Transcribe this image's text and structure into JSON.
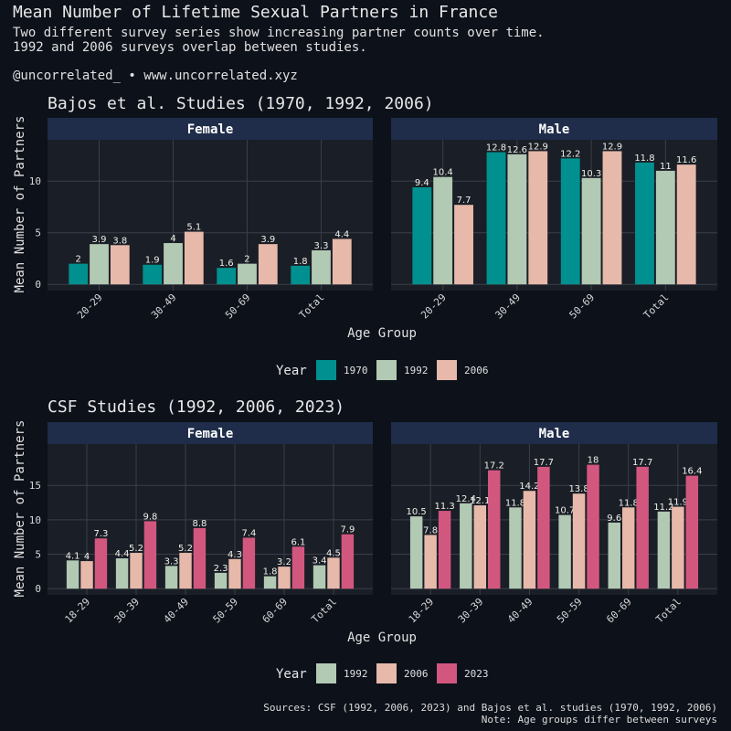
{
  "title": "Mean Number of Lifetime Sexual Partners in France",
  "subtitle_line1": "Two different survey series show increasing partner counts over time.",
  "subtitle_line2": "1992 and 2006 surveys overlap between studies.",
  "credit": "@uncorrelated_ • www.uncorrelated.xyz",
  "caption_line1": "Sources: CSF (1992, 2006, 2023) and Bajos et al. studies (1970, 1992, 2006)",
  "caption_line2": "Note: Age groups differ between surveys",
  "colors": {
    "1970": "#00908f",
    "1992": "#b2c9b4",
    "2006": "#e7b9aa",
    "2023": "#d2577f",
    "strip": "#1f2d4a",
    "panel": "#1a1e26",
    "grid": "#3a3f48"
  },
  "chart_data": [
    {
      "type": "bar",
      "title": "Bajos et al. Studies (1970, 1992, 2006)",
      "xlabel": "Age Group",
      "ylabel": "Mean Number of Partners",
      "ylim": [
        -0.6,
        14.0
      ],
      "yticks": [
        0,
        5,
        10
      ],
      "legend_title": "Year",
      "legend_position": "bottom",
      "series_names": [
        "1970",
        "1992",
        "2006"
      ],
      "panels": [
        {
          "facet": "Female",
          "categories": [
            "20-29",
            "30-49",
            "50-69",
            "Total"
          ],
          "series": [
            {
              "name": "1970",
              "values": [
                2,
                1.9,
                1.6,
                1.8
              ]
            },
            {
              "name": "1992",
              "values": [
                3.9,
                4,
                2,
                3.3
              ]
            },
            {
              "name": "2006",
              "values": [
                3.8,
                5.1,
                3.9,
                4.4
              ]
            }
          ]
        },
        {
          "facet": "Male",
          "categories": [
            "20-29",
            "30-49",
            "50-69",
            "Total"
          ],
          "series": [
            {
              "name": "1970",
              "values": [
                9.4,
                12.8,
                12.2,
                11.8
              ]
            },
            {
              "name": "1992",
              "values": [
                10.4,
                12.6,
                10.3,
                11
              ]
            },
            {
              "name": "2006",
              "values": [
                7.7,
                12.9,
                12.9,
                11.6
              ]
            }
          ]
        }
      ]
    },
    {
      "type": "bar",
      "title": "CSF Studies (1992, 2006, 2023)",
      "xlabel": "Age Group",
      "ylabel": "Mean Number of Partners",
      "ylim": [
        -0.9,
        21.0
      ],
      "yticks": [
        0,
        5,
        10,
        15
      ],
      "legend_title": "Year",
      "legend_position": "bottom",
      "series_names": [
        "1992",
        "2006",
        "2023"
      ],
      "panels": [
        {
          "facet": "Female",
          "categories": [
            "18-29",
            "30-39",
            "40-49",
            "50-59",
            "60-69",
            "Total"
          ],
          "series": [
            {
              "name": "1992",
              "values": [
                4.1,
                4.4,
                3.3,
                2.3,
                1.8,
                3.4
              ]
            },
            {
              "name": "2006",
              "values": [
                4,
                5.2,
                5.2,
                4.3,
                3.2,
                4.5
              ]
            },
            {
              "name": "2023",
              "values": [
                7.3,
                9.8,
                8.8,
                7.4,
                6.1,
                7.9
              ]
            }
          ]
        },
        {
          "facet": "Male",
          "categories": [
            "18-29",
            "30-39",
            "40-49",
            "50-59",
            "60-69",
            "Total"
          ],
          "series": [
            {
              "name": "1992",
              "values": [
                10.5,
                12.4,
                11.8,
                10.7,
                9.6,
                11.2
              ]
            },
            {
              "name": "2006",
              "values": [
                7.8,
                12.1,
                14.2,
                13.8,
                11.8,
                11.9
              ]
            },
            {
              "name": "2023",
              "values": [
                11.3,
                17.2,
                17.7,
                18,
                17.7,
                16.4
              ]
            }
          ]
        }
      ]
    }
  ]
}
